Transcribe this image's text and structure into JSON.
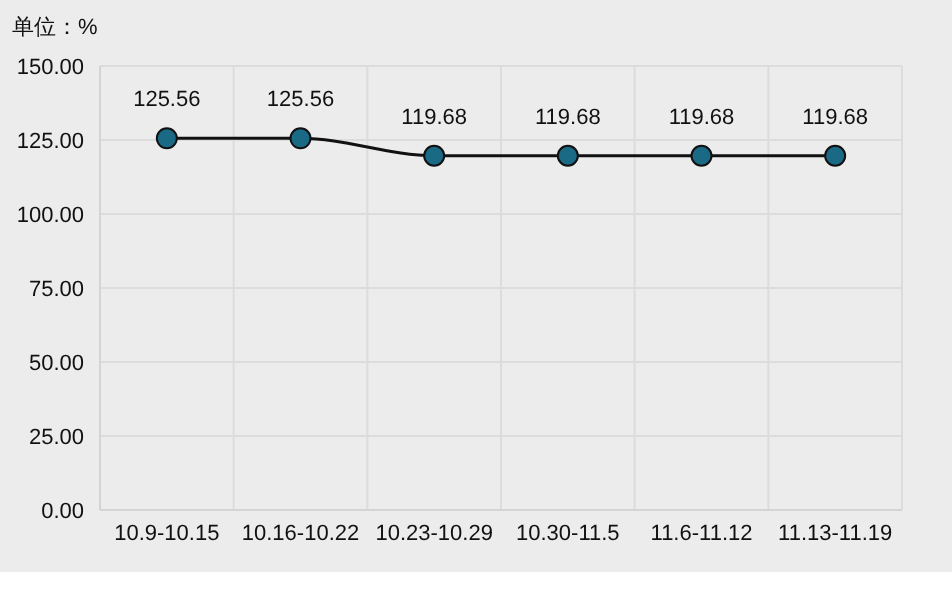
{
  "chart_data": {
    "type": "line",
    "ylabel": "单位：%",
    "categories": [
      "10.9-10.15",
      "10.16-10.22",
      "10.23-10.29",
      "10.30-11.5",
      "11.6-11.12",
      "11.13-11.19"
    ],
    "series": [
      {
        "color": "#1a6a86",
        "values": [
          125.56,
          125.56,
          119.68,
          119.68,
          119.68,
          119.68
        ]
      }
    ],
    "ylim": [
      0,
      150
    ],
    "yticks": [
      {
        "value": 0,
        "label": "0.00"
      },
      {
        "value": 25,
        "label": "25.00"
      },
      {
        "value": 50,
        "label": "50.00"
      },
      {
        "value": 75,
        "label": "75.00"
      },
      {
        "value": 100,
        "label": "100.00"
      },
      {
        "value": 125,
        "label": "125.00"
      },
      {
        "value": 150,
        "label": "150.00"
      }
    ],
    "grid": true,
    "data_labels": true,
    "marker": "circle"
  }
}
